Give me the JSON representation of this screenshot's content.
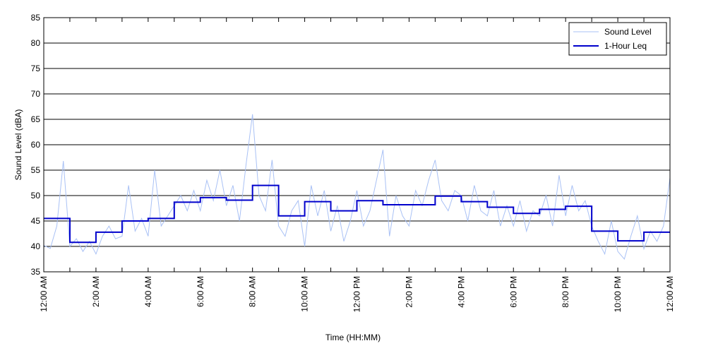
{
  "chart_data": {
    "type": "line",
    "xlabel": "Time (HH:MM)",
    "ylabel": "Sound Level (dBA)",
    "xlim": [
      0,
      24
    ],
    "ylim": [
      35,
      85
    ],
    "yticks": [
      35,
      40,
      45,
      50,
      55,
      60,
      65,
      70,
      75,
      80,
      85
    ],
    "xticks": [
      {
        "value": 0,
        "label": "12:00 AM"
      },
      {
        "value": 2,
        "label": "2:00 AM"
      },
      {
        "value": 4,
        "label": "4:00 AM"
      },
      {
        "value": 6,
        "label": "6:00 AM"
      },
      {
        "value": 8,
        "label": "8:00 AM"
      },
      {
        "value": 10,
        "label": "10:00 AM"
      },
      {
        "value": 12,
        "label": "12:00 PM"
      },
      {
        "value": 14,
        "label": "2:00 PM"
      },
      {
        "value": 16,
        "label": "4:00 PM"
      },
      {
        "value": 18,
        "label": "6:00 PM"
      },
      {
        "value": 20,
        "label": "8:00 PM"
      },
      {
        "value": 22,
        "label": "10:00 PM"
      },
      {
        "value": 24,
        "label": "12:00 AM"
      }
    ],
    "xminorticks": [
      1,
      3,
      5,
      7,
      9,
      11,
      13,
      15,
      17,
      19,
      21,
      23
    ],
    "grid": "y",
    "legend": "upper right",
    "series": [
      {
        "name": "Sound Level",
        "color": "#a9c1f5",
        "width": 1,
        "x": [
          0,
          0.25,
          0.5,
          0.75,
          1,
          1.25,
          1.5,
          1.75,
          2,
          2.25,
          2.5,
          2.75,
          3,
          3.25,
          3.5,
          3.75,
          4,
          4.25,
          4.5,
          4.75,
          5,
          5.25,
          5.5,
          5.75,
          6,
          6.25,
          6.5,
          6.75,
          7,
          7.25,
          7.5,
          7.75,
          8,
          8.25,
          8.5,
          8.75,
          9,
          9.25,
          9.5,
          9.75,
          10,
          10.25,
          10.5,
          10.75,
          11,
          11.25,
          11.5,
          11.75,
          12,
          12.25,
          12.5,
          12.75,
          13,
          13.25,
          13.5,
          13.75,
          14,
          14.25,
          14.5,
          14.75,
          15,
          15.25,
          15.5,
          15.75,
          16,
          16.25,
          16.5,
          16.75,
          17,
          17.25,
          17.5,
          17.75,
          18,
          18.25,
          18.5,
          18.75,
          19,
          19.25,
          19.5,
          19.75,
          20,
          20.25,
          20.5,
          20.75,
          21,
          21.25,
          21.5,
          21.75,
          22,
          22.25,
          22.5,
          22.75,
          23,
          23.25,
          23.5,
          23.75,
          24
        ],
        "values": [
          40.2,
          39.6,
          44,
          56.8,
          40,
          41.5,
          39,
          41,
          38.5,
          42,
          44,
          41.5,
          42,
          52,
          43,
          45.5,
          42,
          55,
          44,
          46,
          48,
          50,
          47,
          51,
          47,
          53,
          49,
          55,
          48,
          52,
          45,
          56,
          66,
          50,
          47,
          57,
          44,
          42,
          47,
          49,
          40,
          52,
          46,
          51,
          43,
          48,
          41,
          45,
          51,
          44,
          47,
          53,
          59,
          42,
          50,
          46,
          44,
          51,
          48,
          53,
          57,
          49,
          47,
          51,
          50,
          45,
          52,
          47,
          46,
          51,
          44,
          48,
          44,
          49,
          43,
          47,
          46,
          50,
          44,
          54,
          46,
          52,
          47,
          49,
          44,
          41,
          38.5,
          45,
          39,
          37.5,
          42,
          46,
          39.5,
          43,
          41,
          44,
          53.5
        ]
      },
      {
        "name": "1-Hour Leq",
        "color": "#0000cc",
        "width": 2,
        "drawstyle": "steps-post",
        "x": [
          0,
          1,
          2,
          3,
          4,
          5,
          6,
          7,
          8,
          9,
          10,
          11,
          12,
          13,
          14,
          15,
          16,
          17,
          18,
          19,
          20,
          21,
          22,
          23
        ],
        "values": [
          45.5,
          40.8,
          42.8,
          45.0,
          45.5,
          48.7,
          49.6,
          49.1,
          52.0,
          46.0,
          48.8,
          47.0,
          49.0,
          48.2,
          48.2,
          49.9,
          48.8,
          47.7,
          46.5,
          47.3,
          47.9,
          43.0,
          41.1,
          42.8
        ]
      }
    ]
  }
}
